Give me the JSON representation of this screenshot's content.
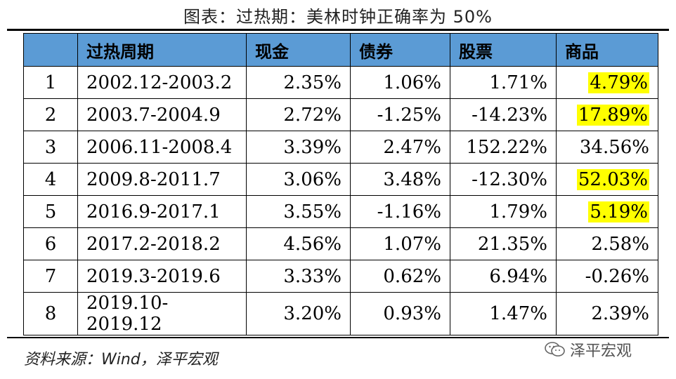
{
  "title": "图表：过热期：美林时钟正确率为 50%",
  "table": {
    "headers": [
      "",
      "过热周期",
      "现金",
      "债券",
      "股票",
      "商品"
    ],
    "rows": [
      {
        "idx": "1",
        "period": "2002.12-2003.2",
        "cash": "2.35%",
        "bond": "1.06%",
        "stock": "1.71%",
        "commodity": "4.79%",
        "hl": true
      },
      {
        "idx": "2",
        "period": "2003.7-2004.9",
        "cash": "2.72%",
        "bond": "-1.25%",
        "stock": "-14.23%",
        "commodity": "17.89%",
        "hl": true
      },
      {
        "idx": "3",
        "period": "2006.11-2008.4",
        "cash": "3.39%",
        "bond": "2.47%",
        "stock": "152.22%",
        "commodity": "34.56%",
        "hl": false
      },
      {
        "idx": "4",
        "period": "2009.8-2011.7",
        "cash": "3.06%",
        "bond": "3.48%",
        "stock": "-12.30%",
        "commodity": "52.03%",
        "hl": true
      },
      {
        "idx": "5",
        "period": "2016.9-2017.1",
        "cash": "3.55%",
        "bond": "-1.16%",
        "stock": "1.79%",
        "commodity": "5.19%",
        "hl": true
      },
      {
        "idx": "6",
        "period": "2017.2-2018.2",
        "cash": "4.56%",
        "bond": "1.07%",
        "stock": "21.35%",
        "commodity": "2.58%",
        "hl": false
      },
      {
        "idx": "7",
        "period": "2019.3-2019.6",
        "cash": "3.33%",
        "bond": "0.62%",
        "stock": "6.94%",
        "commodity": "-0.26%",
        "hl": false
      },
      {
        "idx": "8",
        "period": "2019.10-2019.12",
        "cash": "3.20%",
        "bond": "0.93%",
        "stock": "1.47%",
        "commodity": "2.39%",
        "hl": false
      }
    ]
  },
  "source": "资料来源：Wind，泽平宏观",
  "watermark": {
    "text": "泽平宏观",
    "icon": "wechat-icon"
  },
  "colors": {
    "header_bg": "#5b9bd5",
    "highlight": "#ffff00"
  }
}
